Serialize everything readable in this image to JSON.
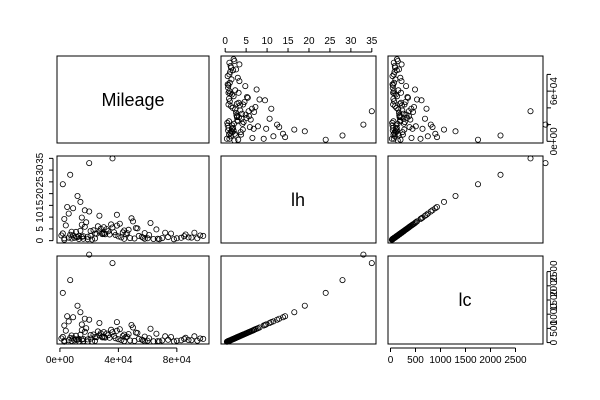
{
  "chart_data": {
    "type": "scatter",
    "subtype": "pairs-matrix",
    "variables": [
      "Mileage",
      "lh",
      "lc"
    ],
    "ranges": {
      "Mileage": [
        -2000,
        102000
      ],
      "lh": [
        -1,
        36
      ],
      "lc": [
        -50,
        3050
      ]
    },
    "ticks": {
      "Mileage": {
        "values": [
          0,
          40000,
          80000
        ],
        "labels": [
          "0e+00",
          "4e+04",
          "8e+04"
        ],
        "side": "bottom"
      },
      "lh": {
        "values": [
          0,
          5,
          10,
          15,
          20,
          25,
          30,
          35
        ],
        "labels": [
          "0",
          "5",
          "10",
          "15",
          "20",
          "25",
          "30",
          "35"
        ],
        "side": "top-and-left"
      },
      "Mileage_right": {
        "values": [
          0,
          20000,
          40000,
          60000,
          80000
        ],
        "labels": [
          "0e+00",
          "",
          "",
          "6e+04",
          ""
        ],
        "side": "right"
      },
      "lc": {
        "values": [
          0,
          500,
          1000,
          1500,
          2000,
          2500
        ],
        "labels": [
          "0",
          "500",
          "1000",
          "1500",
          "2000",
          "2500"
        ],
        "side": "bottom-and-right"
      }
    },
    "points": {
      "Mileage": [
        21000,
        33000,
        16000,
        58000,
        94000,
        4000,
        12000,
        45000,
        52000,
        78000,
        27000,
        15000,
        3000,
        19000,
        86000,
        62000,
        8000,
        23000,
        38000,
        48000,
        2000,
        17000,
        90000,
        13000,
        66000,
        30000,
        6000,
        42000,
        72000,
        24000,
        35000,
        1000,
        56000,
        20000,
        11000,
        98000,
        44000,
        28000,
        83000,
        7000,
        50000,
        16000,
        37000,
        68000,
        9000,
        26000,
        60000,
        14000,
        40000,
        76000,
        31000,
        5000,
        22000,
        47000,
        88000,
        18000,
        54000,
        29000,
        10000,
        64000,
        36000,
        25000,
        80000,
        12000,
        43000,
        3000,
        70000,
        21000,
        51000,
        34000,
        8000,
        96000,
        39000,
        15000,
        58000,
        27000,
        46000,
        13000,
        74000,
        32000,
        6000,
        61000,
        19000,
        41000,
        85000,
        24000,
        53000,
        2000,
        17000,
        36000,
        67000,
        11000,
        49000,
        29000,
        92000,
        14000,
        44000,
        7000,
        57000,
        30000,
        20000,
        3000,
        39000,
        9000,
        15000
      ],
      "lh": [
        2.1,
        4.0,
        0.8,
        3.2,
        1.0,
        6.5,
        1.5,
        2.8,
        5.4,
        0.6,
        3.9,
        9.8,
        0.4,
        1.7,
        2.6,
        7.5,
        0.9,
        4.4,
        2.4,
        1.1,
        3.1,
        5.9,
        1.3,
        0.7,
        4.8,
        2.9,
        11.5,
        1.4,
        3.4,
        0.9,
        6.9,
        2.2,
        1.6,
        12.4,
        3.7,
        2.0,
        0.8,
        5.1,
        1.2,
        2.5,
        8.2,
        1.9,
        3.6,
        0.6,
        2.3,
        6.1,
        1.0,
        4.2,
        1.8,
        3.0,
        2.7,
        14.3,
        0.5,
        4.6,
        1.4,
        7.8,
        2.0,
        3.3,
        1.2,
        0.7,
        5.6,
        2.9,
        1.0,
        19.0,
        3.5,
        9.2,
        1.1,
        4.1,
        0.9,
        2.6,
        3.8,
        2.2,
        6.4,
        1.6,
        0.8,
        10.6,
        3.2,
        2.0,
        1.5,
        4.9,
        1.3,
        2.4,
        0.6,
        7.2,
        1.9,
        3.0,
        5.2,
        24.0,
        12.9,
        35.0,
        0.8,
        1.7,
        9.5,
        2.8,
        3.4,
        16.5,
        4.3,
        28.0,
        1.2,
        5.7,
        33.0,
        1.0,
        11.0,
        13.8,
        6.8
      ],
      "lc": [
        140,
        260,
        52,
        210,
        65,
        420,
        98,
        185,
        350,
        40,
        255,
        640,
        28,
        112,
        170,
        490,
        60,
        285,
        156,
        72,
        200,
        380,
        85,
        46,
        312,
        190,
        745,
        92,
        220,
        58,
        450,
        145,
        105,
        805,
        240,
        130,
        52,
        330,
        80,
        165,
        530,
        125,
        235,
        40,
        150,
        395,
        66,
        275,
        118,
        195,
        176,
        930,
        34,
        300,
        92,
        505,
        130,
        215,
        78,
        46,
        365,
        190,
        66,
        1300,
        228,
        600,
        72,
        268,
        58,
        170,
        248,
        145,
        415,
        104,
        52,
        690,
        210,
        130,
        98,
        320,
        85,
        156,
        40,
        470,
        125,
        195,
        338,
        1750,
        840,
        2800,
        52,
        112,
        620,
        182,
        222,
        1070,
        280,
        2200,
        78,
        370,
        3100,
        65,
        720,
        895,
        440
      ]
    }
  }
}
